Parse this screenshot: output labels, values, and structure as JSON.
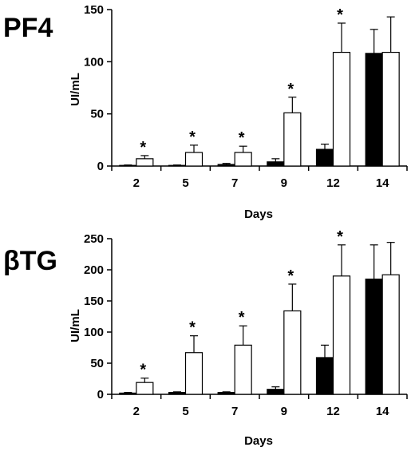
{
  "chart_data": [
    {
      "type": "bar",
      "panel_label": "PF4",
      "categories": [
        "2",
        "5",
        "7",
        "9",
        "12",
        "14"
      ],
      "xlabel": "Days",
      "ylabel": "UI/mL",
      "ylim": [
        0,
        150
      ],
      "yticks": [
        "0",
        "50",
        "100",
        "150"
      ],
      "series": [
        {
          "fill": "black",
          "values": [
            0.5,
            0.5,
            1.5,
            4,
            16,
            108
          ],
          "errors": [
            0.5,
            0.5,
            1,
            3,
            5,
            23
          ]
        },
        {
          "fill": "white",
          "values": [
            7,
            13,
            13,
            51,
            109,
            109
          ],
          "errors": [
            3,
            7,
            6,
            15,
            28,
            34
          ]
        }
      ],
      "significance_markers": [
        "*",
        "*",
        "*",
        "*",
        "*",
        ""
      ]
    },
    {
      "type": "bar",
      "panel_label": "βTG",
      "categories": [
        "2",
        "5",
        "7",
        "9",
        "12",
        "14"
      ],
      "xlabel": "Days",
      "ylabel": "UI/mL",
      "ylim": [
        0,
        250
      ],
      "yticks": [
        "0",
        "50",
        "100",
        "150",
        "200",
        "250"
      ],
      "series": [
        {
          "fill": "black",
          "values": [
            2,
            3,
            3,
            8,
            59,
            185
          ],
          "errors": [
            1,
            1,
            1,
            4,
            20,
            55
          ]
        },
        {
          "fill": "white",
          "values": [
            19,
            67,
            79,
            134,
            190,
            192
          ],
          "errors": [
            7,
            27,
            31,
            43,
            50,
            52
          ]
        }
      ],
      "significance_markers": [
        "*",
        "*",
        "*",
        "*",
        "*",
        ""
      ]
    }
  ]
}
